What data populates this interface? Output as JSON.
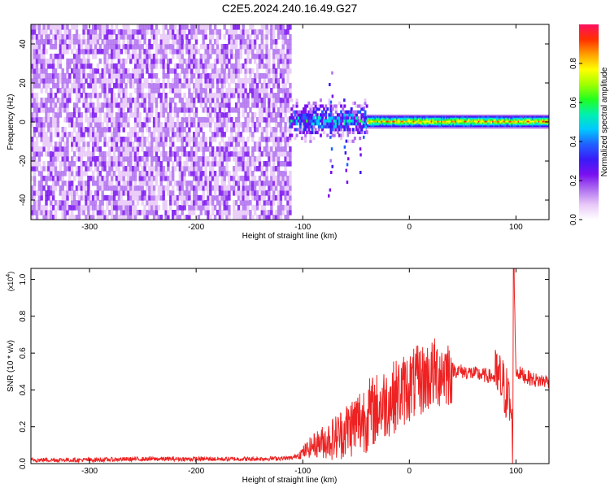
{
  "title": "C2E5.2024.240.16.49.G27",
  "chart_data": [
    {
      "type": "heatmap",
      "xlabel": "Height of straight line (km)",
      "ylabel": "Frequency (Hz)",
      "xlim": [
        -355,
        131
      ],
      "ylim": [
        -50,
        50
      ],
      "xticks": [
        -300,
        -200,
        -100,
        0,
        100
      ],
      "yticks": [
        -40,
        -20,
        0,
        20,
        40
      ],
      "colorbar": {
        "label": "Normalized spectral amplitude",
        "range": [
          0,
          1
        ],
        "ticks": [
          0.0,
          0.2,
          0.4,
          0.6,
          0.8
        ],
        "colormap": [
          "#ffffff",
          "#e8c8f8",
          "#b070f0",
          "#7a10f0",
          "#3a1af8",
          "#2060ff",
          "#00c8ff",
          "#00f0b0",
          "#20ff20",
          "#a0ff00",
          "#ffff00",
          "#ffa000",
          "#ff3000",
          "#ff1060"
        ]
      },
      "regions": [
        {
          "name": "noise",
          "x_range": [
            -355,
            -113
          ],
          "freq_range": [
            -50,
            50
          ],
          "amplitude": 0.15
        },
        {
          "name": "transition",
          "x_range": [
            -113,
            -40
          ],
          "freq_range": [
            -8,
            8
          ],
          "amplitude": 0.4
        },
        {
          "name": "signal",
          "x_range": [
            -40,
            131
          ],
          "freq_center": 0,
          "freq_halfwidth": 2,
          "amplitude": 0.95
        }
      ]
    },
    {
      "type": "line",
      "xlabel": "Height of straight line (km)",
      "ylabel": "SNR (10 * v/v)",
      "yscale_label": "(x10",
      "yscale_exp": "4",
      "xlim": [
        -355,
        131
      ],
      "ylim": [
        0,
        1.06
      ],
      "xticks": [
        -300,
        -200,
        -100,
        0,
        100
      ],
      "yticks": [
        0.0,
        0.2,
        0.4,
        0.6,
        0.8,
        1.0
      ],
      "color": "#ee2222",
      "series": [
        {
          "x": [
            -355,
            -300,
            -250,
            -200,
            -150,
            -110,
            -100,
            -90,
            -80,
            -70,
            -60,
            -50,
            -40,
            -30,
            -20,
            -10,
            0,
            10,
            20,
            30,
            40,
            50,
            60,
            70,
            80,
            85,
            90,
            95,
            97,
            98,
            100,
            110,
            120,
            131
          ],
          "values": [
            0.02,
            0.02,
            0.025,
            0.025,
            0.025,
            0.03,
            0.06,
            0.1,
            0.12,
            0.14,
            0.18,
            0.22,
            0.26,
            0.3,
            0.34,
            0.38,
            0.42,
            0.45,
            0.48,
            0.5,
            0.51,
            0.5,
            0.49,
            0.48,
            0.47,
            0.45,
            0.4,
            0.3,
            0.1,
            1.06,
            0.5,
            0.47,
            0.45,
            0.45
          ]
        }
      ]
    }
  ]
}
